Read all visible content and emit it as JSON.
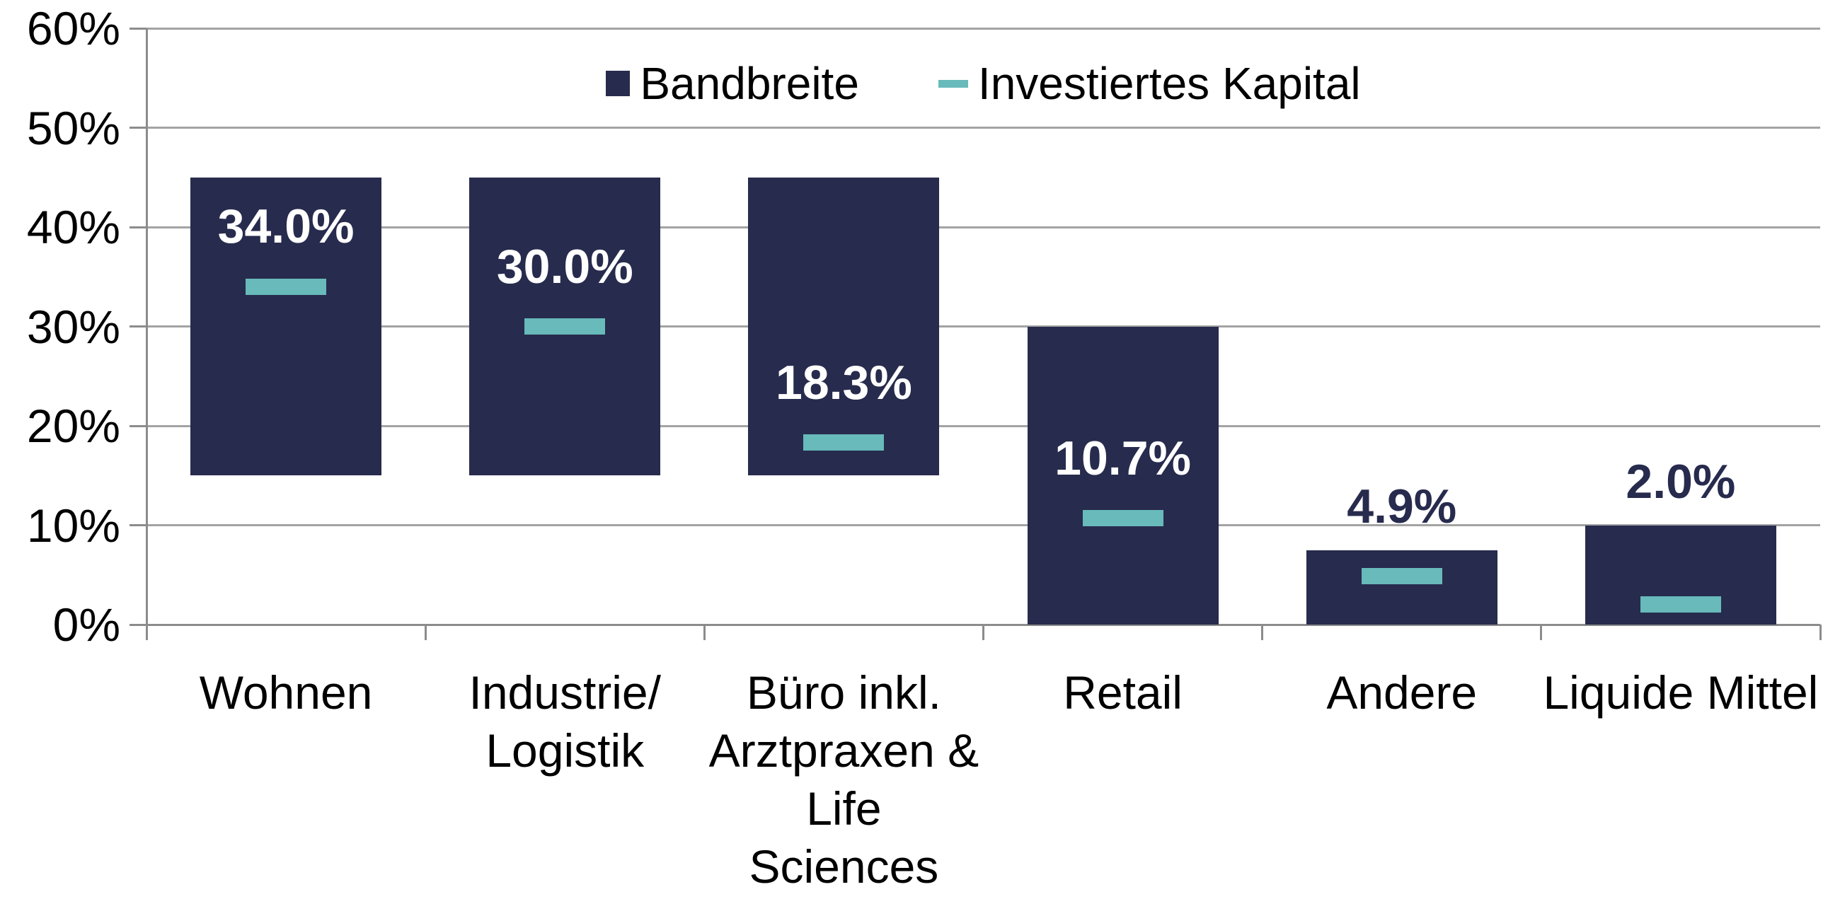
{
  "legend": {
    "items": [
      {
        "label": "Bandbreite",
        "swatch": "square",
        "color": "#272B4D"
      },
      {
        "label": "Investiertes Kapital",
        "swatch": "dash",
        "color": "#68BABB"
      }
    ]
  },
  "chart_data": {
    "type": "bar",
    "subtype": "floating-range-bars-with-value-markers",
    "title": "",
    "xlabel": "",
    "ylabel": "",
    "ylim": [
      0,
      60
    ],
    "ytick_step": 10,
    "yticks": [
      "0%",
      "10%",
      "20%",
      "30%",
      "40%",
      "50%",
      "60%"
    ],
    "grid": true,
    "legend_position": "top-center",
    "categories": [
      "Wohnen",
      "Industrie/Logistik",
      "Büro inkl. Arztpraxen & Life Sciences",
      "Retail",
      "Andere",
      "Liquide Mittel"
    ],
    "category_label_lines": [
      [
        "Wohnen"
      ],
      [
        "Industrie/",
        "Logistik"
      ],
      [
        "Büro inkl.",
        "Arztpraxen &",
        "Life",
        "Sciences"
      ],
      [
        "Retail"
      ],
      [
        "Andere"
      ],
      [
        "Liquide Mittel"
      ]
    ],
    "series": [
      {
        "name": "Bandbreite",
        "render": "range-bar",
        "ranges": [
          [
            15,
            45
          ],
          [
            15,
            45
          ],
          [
            15,
            45
          ],
          [
            0,
            30
          ],
          [
            0,
            7.5
          ],
          [
            0,
            10
          ]
        ]
      },
      {
        "name": "Investiertes Kapital",
        "render": "marker",
        "values": [
          34.0,
          30.0,
          18.3,
          10.7,
          4.9,
          2.0
        ]
      }
    ],
    "value_labels": [
      "34.0%",
      "30.0%",
      "18.3%",
      "10.7%",
      "4.9%",
      "2.0%"
    ],
    "value_label_placement": [
      "inside",
      "inside",
      "inside",
      "inside",
      "outside",
      "outside"
    ],
    "colors": {
      "bar": "#272B4D",
      "marker": "#68BABB",
      "gridline": "#A3A3A3",
      "axis": "#8C8C8C",
      "value_label_inside": "#FFFFFF",
      "value_label_outside": "#272B4D",
      "text": "#000000"
    }
  }
}
